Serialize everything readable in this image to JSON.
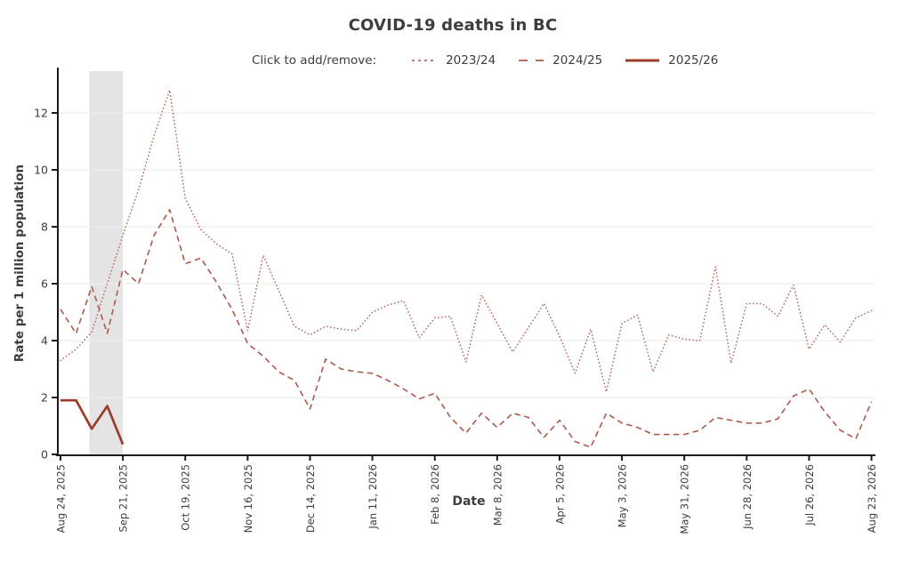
{
  "title": "COVID-19 deaths in BC",
  "legend": {
    "prompt": "Click to add/remove:",
    "items": [
      {
        "label": "2023/24",
        "style": "dotted",
        "color": "#b36a5e"
      },
      {
        "label": "2024/25",
        "style": "dashed",
        "color": "#ad594b"
      },
      {
        "label": "2025/26",
        "style": "solid",
        "color": "#9a3d2b"
      }
    ]
  },
  "colors": {
    "band": "#e4e4e4",
    "grid": "#ededed",
    "axis": "#1a1a1a",
    "text": "#3d3d3d"
  },
  "chart_data": {
    "type": "line",
    "title": "COVID-19 deaths in BC",
    "xlabel": "Date",
    "ylabel": "Rate per 1 million population",
    "x_unit": "week",
    "x_start": "Aug 24, 2025",
    "weeks_per_tick": 4,
    "x_tick_labels": [
      "Aug 24, 2025",
      "Sep 21, 2025",
      "Oct 19, 2025",
      "Nov 16, 2025",
      "Dec 14, 2025",
      "Jan 11, 2026",
      "Feb 8, 2026",
      "Mar 8, 2026",
      "Apr 5, 2026",
      "May 3, 2026",
      "May 31, 2026",
      "Jun 28, 2026",
      "Jul 26, 2026",
      "Aug 23, 2026"
    ],
    "yticks": [
      0,
      2,
      4,
      6,
      8,
      10,
      12
    ],
    "ylim": [
      0,
      13.5
    ],
    "grid": "horizontal",
    "legend_position": "top",
    "highlight_band_weeks": [
      1.85,
      4
    ],
    "series": [
      {
        "name": "2023/24",
        "dash": "dotted",
        "color": "#b36a5e",
        "width": 1.6,
        "values": [
          3.3,
          3.7,
          4.3,
          6.0,
          7.7,
          9.3,
          11.2,
          12.8,
          9.0,
          7.9,
          7.4,
          7.05,
          4.35,
          7.0,
          5.75,
          4.5,
          4.2,
          4.5,
          4.4,
          4.35,
          5.0,
          5.25,
          5.4,
          4.1,
          4.8,
          4.85,
          3.25,
          5.6,
          4.6,
          3.6,
          4.45,
          5.3,
          4.15,
          2.85,
          4.4,
          2.2,
          4.6,
          4.9,
          2.9,
          4.2,
          4.05,
          4.0,
          6.6,
          3.2,
          5.3,
          5.3,
          4.85,
          5.95,
          3.7,
          4.55,
          3.95,
          4.8,
          5.05
        ]
      },
      {
        "name": "2024/25",
        "dash": "dashed",
        "color": "#ad594b",
        "width": 1.6,
        "values": [
          5.1,
          4.25,
          5.9,
          4.25,
          6.5,
          6.0,
          7.7,
          8.6,
          6.7,
          6.9,
          6.05,
          5.1,
          3.9,
          3.45,
          2.9,
          2.6,
          1.6,
          3.35,
          3.0,
          2.9,
          2.85,
          2.6,
          2.3,
          1.95,
          2.15,
          1.3,
          0.75,
          1.45,
          0.95,
          1.45,
          1.3,
          0.6,
          1.2,
          0.45,
          0.25,
          1.45,
          1.1,
          0.95,
          0.7,
          0.7,
          0.7,
          0.85,
          1.3,
          1.2,
          1.1,
          1.1,
          1.25,
          2.05,
          2.3,
          1.5,
          0.85,
          0.55,
          1.85
        ]
      },
      {
        "name": "2025/26",
        "dash": "solid",
        "color": "#9a3d2b",
        "width": 2.7,
        "values": [
          1.9,
          1.9,
          0.9,
          1.7,
          0.35
        ]
      }
    ]
  }
}
